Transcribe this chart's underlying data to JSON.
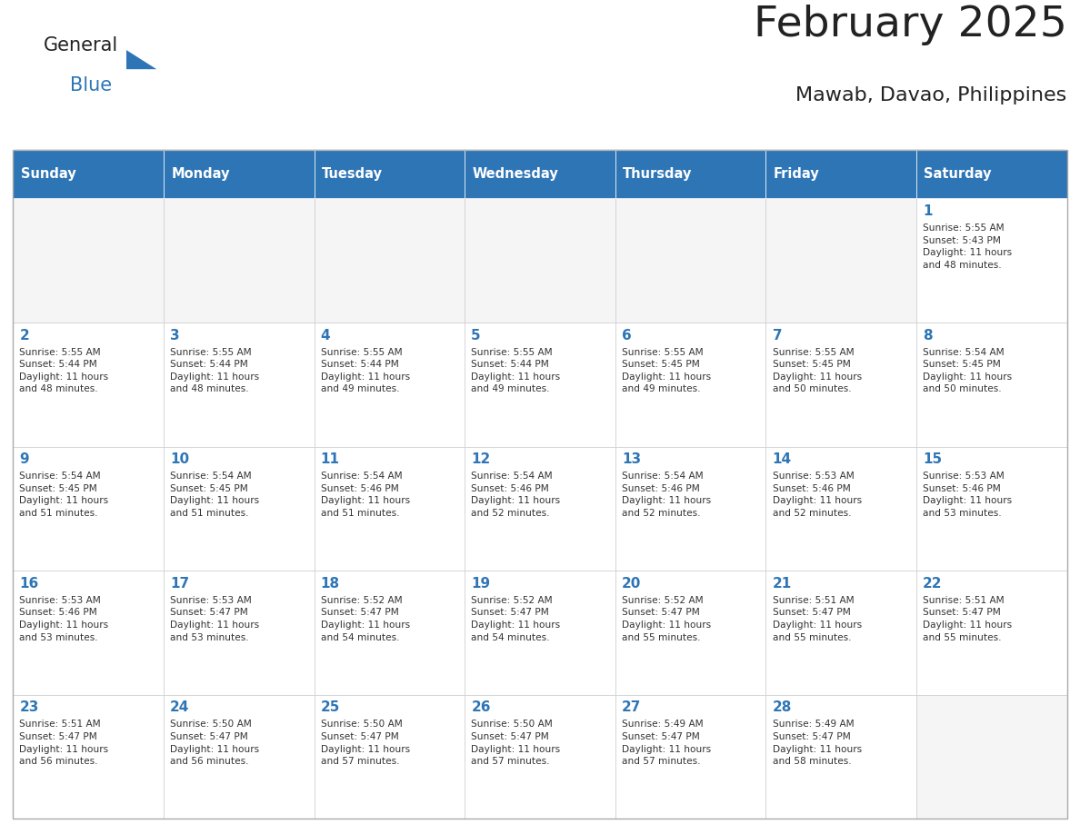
{
  "title": "February 2025",
  "subtitle": "Mawab, Davao, Philippines",
  "header_bg": "#2E75B6",
  "header_text": "#FFFFFF",
  "header_days": [
    "Sunday",
    "Monday",
    "Tuesday",
    "Wednesday",
    "Thursday",
    "Friday",
    "Saturday"
  ],
  "cell_bg": "#FFFFFF",
  "cell_bg_empty": "#F5F5F5",
  "cell_border": "#CCCCCC",
  "day_number_color": "#2E75B6",
  "info_text_color": "#333333",
  "title_color": "#222222",
  "logo_general_color": "#222222",
  "logo_blue_color": "#2E75B6",
  "calendar_data": [
    [
      null,
      null,
      null,
      null,
      null,
      null,
      {
        "day": 1,
        "sunrise": "5:55 AM",
        "sunset": "5:43 PM",
        "daylight": "11 hours\nand 48 minutes."
      }
    ],
    [
      {
        "day": 2,
        "sunrise": "5:55 AM",
        "sunset": "5:44 PM",
        "daylight": "11 hours\nand 48 minutes."
      },
      {
        "day": 3,
        "sunrise": "5:55 AM",
        "sunset": "5:44 PM",
        "daylight": "11 hours\nand 48 minutes."
      },
      {
        "day": 4,
        "sunrise": "5:55 AM",
        "sunset": "5:44 PM",
        "daylight": "11 hours\nand 49 minutes."
      },
      {
        "day": 5,
        "sunrise": "5:55 AM",
        "sunset": "5:44 PM",
        "daylight": "11 hours\nand 49 minutes."
      },
      {
        "day": 6,
        "sunrise": "5:55 AM",
        "sunset": "5:45 PM",
        "daylight": "11 hours\nand 49 minutes."
      },
      {
        "day": 7,
        "sunrise": "5:55 AM",
        "sunset": "5:45 PM",
        "daylight": "11 hours\nand 50 minutes."
      },
      {
        "day": 8,
        "sunrise": "5:54 AM",
        "sunset": "5:45 PM",
        "daylight": "11 hours\nand 50 minutes."
      }
    ],
    [
      {
        "day": 9,
        "sunrise": "5:54 AM",
        "sunset": "5:45 PM",
        "daylight": "11 hours\nand 51 minutes."
      },
      {
        "day": 10,
        "sunrise": "5:54 AM",
        "sunset": "5:45 PM",
        "daylight": "11 hours\nand 51 minutes."
      },
      {
        "day": 11,
        "sunrise": "5:54 AM",
        "sunset": "5:46 PM",
        "daylight": "11 hours\nand 51 minutes."
      },
      {
        "day": 12,
        "sunrise": "5:54 AM",
        "sunset": "5:46 PM",
        "daylight": "11 hours\nand 52 minutes."
      },
      {
        "day": 13,
        "sunrise": "5:54 AM",
        "sunset": "5:46 PM",
        "daylight": "11 hours\nand 52 minutes."
      },
      {
        "day": 14,
        "sunrise": "5:53 AM",
        "sunset": "5:46 PM",
        "daylight": "11 hours\nand 52 minutes."
      },
      {
        "day": 15,
        "sunrise": "5:53 AM",
        "sunset": "5:46 PM",
        "daylight": "11 hours\nand 53 minutes."
      }
    ],
    [
      {
        "day": 16,
        "sunrise": "5:53 AM",
        "sunset": "5:46 PM",
        "daylight": "11 hours\nand 53 minutes."
      },
      {
        "day": 17,
        "sunrise": "5:53 AM",
        "sunset": "5:47 PM",
        "daylight": "11 hours\nand 53 minutes."
      },
      {
        "day": 18,
        "sunrise": "5:52 AM",
        "sunset": "5:47 PM",
        "daylight": "11 hours\nand 54 minutes."
      },
      {
        "day": 19,
        "sunrise": "5:52 AM",
        "sunset": "5:47 PM",
        "daylight": "11 hours\nand 54 minutes."
      },
      {
        "day": 20,
        "sunrise": "5:52 AM",
        "sunset": "5:47 PM",
        "daylight": "11 hours\nand 55 minutes."
      },
      {
        "day": 21,
        "sunrise": "5:51 AM",
        "sunset": "5:47 PM",
        "daylight": "11 hours\nand 55 minutes."
      },
      {
        "day": 22,
        "sunrise": "5:51 AM",
        "sunset": "5:47 PM",
        "daylight": "11 hours\nand 55 minutes."
      }
    ],
    [
      {
        "day": 23,
        "sunrise": "5:51 AM",
        "sunset": "5:47 PM",
        "daylight": "11 hours\nand 56 minutes."
      },
      {
        "day": 24,
        "sunrise": "5:50 AM",
        "sunset": "5:47 PM",
        "daylight": "11 hours\nand 56 minutes."
      },
      {
        "day": 25,
        "sunrise": "5:50 AM",
        "sunset": "5:47 PM",
        "daylight": "11 hours\nand 57 minutes."
      },
      {
        "day": 26,
        "sunrise": "5:50 AM",
        "sunset": "5:47 PM",
        "daylight": "11 hours\nand 57 minutes."
      },
      {
        "day": 27,
        "sunrise": "5:49 AM",
        "sunset": "5:47 PM",
        "daylight": "11 hours\nand 57 minutes."
      },
      {
        "day": 28,
        "sunrise": "5:49 AM",
        "sunset": "5:47 PM",
        "daylight": "11 hours\nand 58 minutes."
      },
      null
    ]
  ]
}
